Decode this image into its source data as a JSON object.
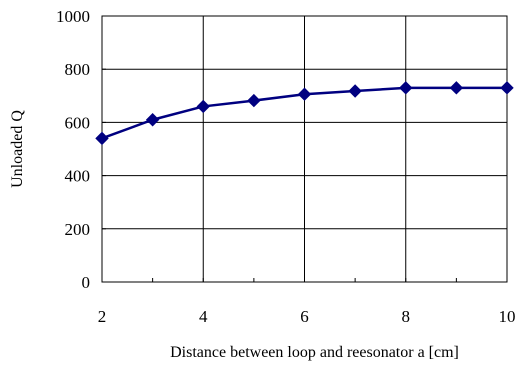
{
  "chart_data": {
    "type": "line",
    "title": "",
    "xlabel": "Distance between loop and reesonator  a [cm]",
    "ylabel": "Unloaded Q",
    "xlim": [
      2,
      10
    ],
    "ylim": [
      0,
      1000
    ],
    "xticks": [
      2,
      4,
      6,
      8,
      10
    ],
    "yticks": [
      0,
      200,
      400,
      600,
      800,
      1000
    ],
    "grid": true,
    "legend": "none",
    "series": [
      {
        "x": [
          2,
          3,
          4,
          5,
          6,
          7,
          8,
          9,
          10
        ],
        "y": [
          540,
          610,
          660,
          682,
          706,
          718,
          730,
          730,
          730
        ],
        "color": "#000080",
        "marker": "diamond"
      }
    ]
  }
}
